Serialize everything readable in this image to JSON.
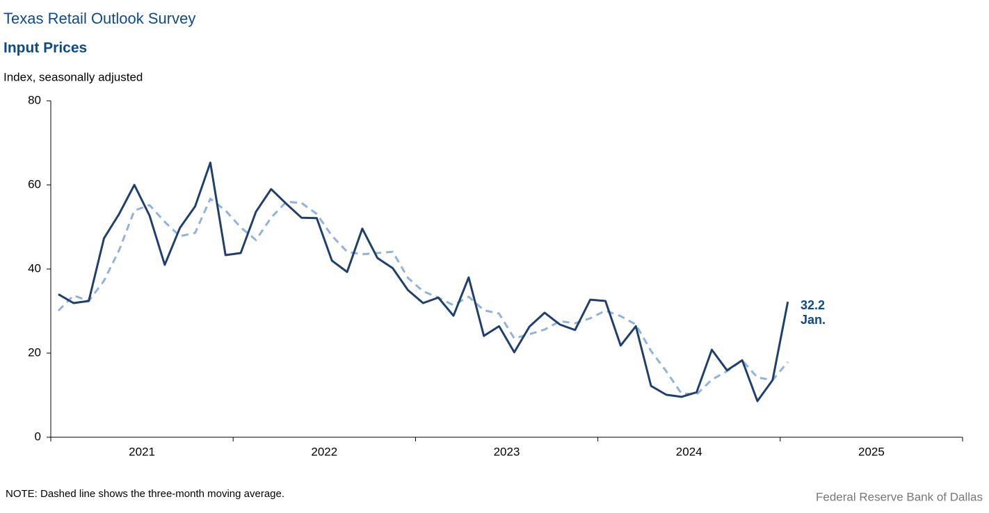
{
  "chart_data": {
    "type": "line",
    "title": "Texas Retail Outlook Survey",
    "subtitle": "Input Prices",
    "y_label": "Index, seasonally adjusted",
    "note": "NOTE: Dashed line shows the three-month  moving average.",
    "source": "Federal Reserve Bank of Dallas",
    "annotations": [
      "32.2",
      "Jan."
    ],
    "x": [
      "2021-01",
      "2021-02",
      "2021-03",
      "2021-04",
      "2021-05",
      "2021-06",
      "2021-07",
      "2021-08",
      "2021-09",
      "2021-10",
      "2021-11",
      "2021-12",
      "2022-01",
      "2022-02",
      "2022-03",
      "2022-04",
      "2022-05",
      "2022-06",
      "2022-07",
      "2022-08",
      "2022-09",
      "2022-10",
      "2022-11",
      "2022-12",
      "2023-01",
      "2023-02",
      "2023-03",
      "2023-04",
      "2023-05",
      "2023-06",
      "2023-07",
      "2023-08",
      "2023-09",
      "2023-10",
      "2023-11",
      "2023-12",
      "2024-01",
      "2024-02",
      "2024-03",
      "2024-04",
      "2024-05",
      "2024-06",
      "2024-07",
      "2024-08",
      "2024-09",
      "2024-10",
      "2024-11",
      "2024-12",
      "2025-01"
    ],
    "series": [
      {
        "style": "dashed",
        "color": "#8fb3e0",
        "values": [
          30.1,
          33.7,
          32.4,
          37.2,
          44.5,
          53.9,
          55.2,
          51.2,
          47.8,
          48.6,
          56.7,
          53.9,
          49.9,
          46.9,
          52.2,
          56.0,
          55.7,
          53.1,
          47.9,
          44.1,
          43.5,
          43.8,
          44.1,
          37.9,
          34.7,
          33.2,
          31.4,
          33.4,
          30.2,
          29.4,
          23.5,
          24.5,
          25.6,
          27.6,
          27.1,
          28.3,
          30.1,
          28.8,
          26.8,
          20.5,
          15.7,
          10.4,
          10.2,
          13.7,
          15.7,
          18.3,
          14.2,
          13.6,
          17.9
        ]
      },
      {
        "style": "solid",
        "color": "#1f3f6e",
        "values": [
          34.0,
          31.9,
          32.4,
          47.3,
          53.1,
          60.0,
          52.7,
          41.0,
          49.8,
          54.9,
          65.3,
          43.3,
          43.8,
          53.6,
          59.0,
          55.5,
          52.2,
          52.1,
          42.0,
          39.3,
          49.6,
          42.6,
          40.2,
          35.0,
          31.9,
          33.2,
          28.9,
          38.0,
          24.1,
          26.4,
          20.2,
          26.3,
          29.6,
          26.8,
          25.5,
          32.7,
          32.4,
          21.8,
          26.4,
          12.2,
          10.1,
          9.6,
          10.7,
          20.8,
          15.9,
          18.3,
          8.6,
          13.6,
          32.2
        ]
      }
    ],
    "xlim": [
      "2021-01",
      "2026-01"
    ],
    "xticks": [
      {
        "value": "2021-01",
        "label": "2021"
      },
      {
        "value": "2022-01",
        "label": "2022"
      },
      {
        "value": "2023-01",
        "label": "2023"
      },
      {
        "value": "2024-01",
        "label": "2024"
      },
      {
        "value": "2025-01",
        "label": "2025"
      }
    ],
    "ylim": [
      0,
      80
    ],
    "yticks": [
      0,
      20,
      40,
      60,
      80
    ],
    "grid": false
  }
}
